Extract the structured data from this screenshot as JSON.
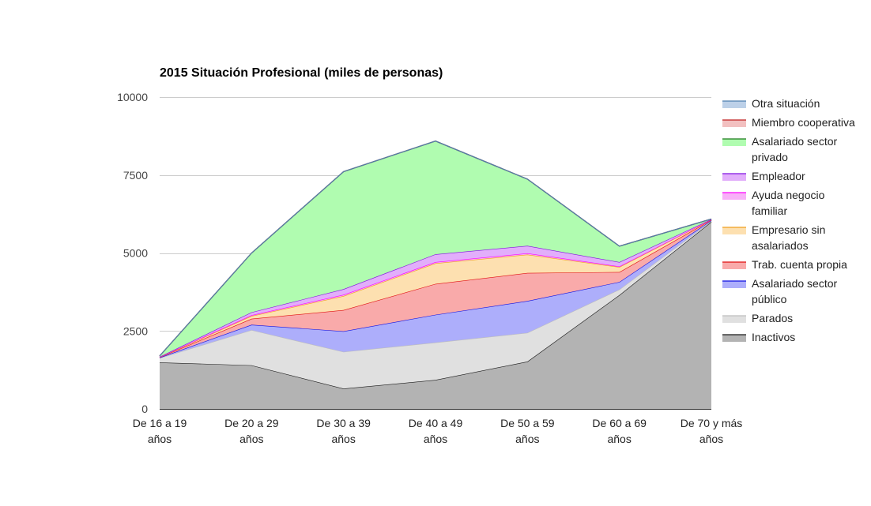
{
  "chart_data": {
    "type": "area",
    "stacked": true,
    "title": "2015 Situación Profesional (miles de personas)",
    "xlabel": "",
    "ylabel": "",
    "ylim": [
      0,
      10000
    ],
    "yticks": [
      "0",
      "2500",
      "5000",
      "7500",
      "10000"
    ],
    "yticks_values": [
      0,
      2500,
      5000,
      7500,
      10000
    ],
    "grid": true,
    "legend_position": "right",
    "categories": [
      [
        "De 16 a 19",
        "años"
      ],
      [
        "De 20 a 29",
        "años"
      ],
      [
        "De 30 a 39",
        "años"
      ],
      [
        "De 40 a 49",
        "años"
      ],
      [
        "De 50 a 59",
        "años"
      ],
      [
        "De 60 a 69",
        "años"
      ],
      [
        "De 70 y más",
        "años"
      ]
    ],
    "series": [
      {
        "name": "Inactivos",
        "legend_lines": [
          "Inactivos"
        ],
        "fill": "#b3b3b3",
        "stroke": "#1a1a1a",
        "values": [
          1490,
          1400,
          650,
          930,
          1520,
          3650,
          6000
        ]
      },
      {
        "name": "Parados",
        "legend_lines": [
          "Parados"
        ],
        "fill": "#e0e0e0",
        "stroke": "#bdbdbd",
        "values": [
          140,
          1130,
          1180,
          1200,
          920,
          180,
          25
        ]
      },
      {
        "name": "Asalariado sector público",
        "legend_lines": [
          "Asalariado sector",
          "público"
        ],
        "fill": "#adaefb",
        "stroke": "#1010e0",
        "values": [
          15,
          170,
          660,
          890,
          1020,
          240,
          20
        ]
      },
      {
        "name": "Trab. cuenta propia",
        "legend_lines": [
          "Trab. cuenta propia"
        ],
        "fill": "#f9aaaa",
        "stroke": "#e01010",
        "values": [
          10,
          190,
          680,
          990,
          900,
          320,
          15
        ]
      },
      {
        "name": "Empresario sin asalariados",
        "legend_lines": [
          "Empresario sin",
          "asalariados"
        ],
        "fill": "#fde0b0",
        "stroke": "#f0a020",
        "values": [
          5,
          90,
          450,
          660,
          590,
          160,
          10
        ]
      },
      {
        "name": "Ayuda negocio familiar",
        "legend_lines": [
          "Ayuda negocio",
          "familiar"
        ],
        "fill": "#f8b0f8",
        "stroke": "#ff00ff",
        "values": [
          5,
          25,
          40,
          40,
          40,
          20,
          5
        ]
      },
      {
        "name": "Empleador",
        "legend_lines": [
          "Empleador"
        ],
        "fill": "#e2aefb",
        "stroke": "#8010e0",
        "values": [
          5,
          95,
          180,
          250,
          240,
          140,
          5
        ]
      },
      {
        "name": "Asalariado sector privado",
        "legend_lines": [
          "Asalariado sector",
          "privado"
        ],
        "fill": "#b0fcb0",
        "stroke": "#1a7a1a",
        "values": [
          30,
          1900,
          3770,
          3630,
          2140,
          510,
          10
        ]
      },
      {
        "name": "Miembro cooperativa",
        "legend_lines": [
          "Miembro cooperativa"
        ],
        "fill": "#f2c0c0",
        "stroke": "#c02020",
        "values": [
          0,
          0,
          0,
          0,
          0,
          0,
          0
        ]
      },
      {
        "name": "Otra situación",
        "legend_lines": [
          "Otra situación"
        ],
        "fill": "#bcd0e8",
        "stroke": "#5080b0",
        "values": [
          0,
          0,
          0,
          0,
          0,
          0,
          0
        ]
      }
    ]
  }
}
